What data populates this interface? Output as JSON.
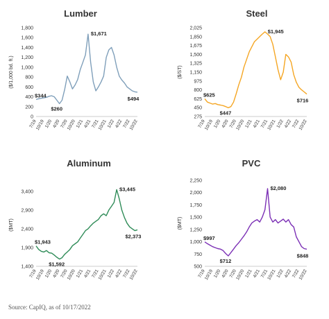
{
  "source_note": "Source: CapIQ, as of 10/17/2022",
  "chart_data": [
    {
      "type": "line",
      "title": "Lumber",
      "ylabel": "($/1,000 bd. ft.)",
      "ylim": [
        0,
        1800
      ],
      "yticks": [
        0,
        200,
        400,
        600,
        800,
        1000,
        1200,
        1400,
        1600,
        1800
      ],
      "ytick_labels": [
        "0",
        "200",
        "400",
        "600",
        "800",
        "1,000",
        "1,200",
        "1,400",
        "1,600",
        "1,800"
      ],
      "xticks": [
        "7/19",
        "10/19",
        "1/20",
        "4/20",
        "7/20",
        "10/20",
        "1/21",
        "4/21",
        "7/21",
        "10/21",
        "1/22",
        "4/22",
        "7/22",
        "10/22"
      ],
      "color": "#7f9fba",
      "series": [
        {
          "x": [
            0,
            1,
            2,
            3,
            4,
            5,
            6,
            7,
            8,
            9,
            10,
            11,
            12,
            13,
            14,
            15,
            16,
            17,
            18,
            19,
            20,
            21,
            22,
            23,
            24,
            25,
            26,
            27,
            28,
            29,
            30,
            31,
            32,
            33,
            34,
            35,
            36,
            37,
            38,
            39
          ],
          "values": [
            344,
            360,
            370,
            380,
            390,
            410,
            420,
            400,
            330,
            260,
            330,
            550,
            820,
            700,
            560,
            640,
            750,
            950,
            1100,
            1250,
            1671,
            1100,
            700,
            520,
            600,
            700,
            820,
            1200,
            1350,
            1400,
            1250,
            1000,
            820,
            740,
            680,
            600,
            560,
            520,
            500,
            494
          ]
        }
      ],
      "annotations": [
        {
          "x": 0,
          "value": 344,
          "text": "$344"
        },
        {
          "x": 9,
          "value": 260,
          "text": "$260"
        },
        {
          "x": 20,
          "value": 1671,
          "text": "$1,671"
        },
        {
          "x": 39,
          "value": 494,
          "text": "$494"
        }
      ]
    },
    {
      "type": "line",
      "title": "Steel",
      "ylabel": "($/ST)",
      "ylim": [
        275,
        2025
      ],
      "yticks": [
        275,
        450,
        625,
        800,
        975,
        1150,
        1325,
        1500,
        1675,
        1850,
        2025
      ],
      "ytick_labels": [
        "275",
        "450",
        "625",
        "800",
        "975",
        "1,150",
        "1,325",
        "1,500",
        "1,675",
        "1,850",
        "2,025"
      ],
      "xticks": [
        "7/19",
        "10/19",
        "1/20",
        "4/20",
        "7/20",
        "10/20",
        "1/21",
        "4/21",
        "7/21",
        "10/21",
        "1/22",
        "4/22",
        "7/22",
        "10/22"
      ],
      "color": "#f5a623",
      "series": [
        {
          "x": [
            0,
            1,
            2,
            3,
            4,
            5,
            6,
            7,
            8,
            9,
            10,
            11,
            12,
            13,
            14,
            15,
            16,
            17,
            18,
            19,
            20,
            21,
            22,
            23,
            24,
            25,
            26,
            27,
            28,
            29,
            30,
            31,
            32,
            33,
            34,
            35,
            36,
            37,
            38,
            39
          ],
          "values": [
            625,
            560,
            540,
            520,
            530,
            510,
            500,
            490,
            470,
            447,
            470,
            560,
            720,
            900,
            1050,
            1250,
            1400,
            1550,
            1650,
            1750,
            1800,
            1850,
            1900,
            1945,
            1900,
            1850,
            1700,
            1450,
            1200,
            1000,
            1150,
            1500,
            1450,
            1350,
            1100,
            950,
            850,
            800,
            760,
            716
          ]
        }
      ],
      "annotations": [
        {
          "x": 0,
          "value": 625,
          "text": "$625"
        },
        {
          "x": 9,
          "value": 447,
          "text": "$447"
        },
        {
          "x": 23,
          "value": 1945,
          "text": "$1,945"
        },
        {
          "x": 39,
          "value": 716,
          "text": "$716"
        }
      ]
    },
    {
      "type": "line",
      "title": "Aluminum",
      "ylabel": "($MT)",
      "ylim": [
        1400,
        3600
      ],
      "yticks": [
        1400,
        1900,
        2400,
        2900,
        3400
      ],
      "ytick_labels": [
        "1,400",
        "1,900",
        "2,400",
        "2,900",
        "3,400"
      ],
      "xticks": [
        "7/19",
        "10/19",
        "1/20",
        "4/20",
        "7/20",
        "10/20",
        "1/21",
        "4/21",
        "7/21",
        "10/21",
        "1/22",
        "4/22",
        "7/22",
        "10/22"
      ],
      "color": "#2e8b57",
      "series": [
        {
          "x": [
            0,
            1,
            2,
            3,
            4,
            5,
            6,
            7,
            8,
            9,
            10,
            11,
            12,
            13,
            14,
            15,
            16,
            17,
            18,
            19,
            20,
            21,
            22,
            23,
            24,
            25,
            26,
            27,
            28,
            29,
            30,
            31,
            32,
            33,
            34,
            35,
            36,
            37,
            38,
            39
          ],
          "values": [
            1943,
            1850,
            1800,
            1780,
            1820,
            1760,
            1750,
            1700,
            1640,
            1592,
            1630,
            1720,
            1780,
            1850,
            1950,
            2000,
            2050,
            2150,
            2250,
            2350,
            2400,
            2480,
            2550,
            2600,
            2650,
            2750,
            2800,
            2750,
            2900,
            3000,
            3100,
            3445,
            3200,
            2900,
            2700,
            2550,
            2450,
            2400,
            2350,
            2373
          ]
        }
      ],
      "annotations": [
        {
          "x": 0,
          "value": 1943,
          "text": "$1,943"
        },
        {
          "x": 9,
          "value": 1592,
          "text": "$1,592"
        },
        {
          "x": 31,
          "value": 3445,
          "text": "$3,445"
        },
        {
          "x": 39,
          "value": 2373,
          "text": "$2,373"
        }
      ]
    },
    {
      "type": "line",
      "title": "PVC",
      "ylabel": "($MT)",
      "ylim": [
        500,
        2250
      ],
      "yticks": [
        500,
        750,
        1000,
        1250,
        1500,
        1750,
        2000,
        2250
      ],
      "ytick_labels": [
        "500",
        "750",
        "1,000",
        "1,250",
        "1,500",
        "1,750",
        "2,000",
        "2,250"
      ],
      "xticks": [
        "7/19",
        "10/19",
        "1/20",
        "4/20",
        "7/20",
        "10/20",
        "1/21",
        "4/21",
        "7/21",
        "10/21",
        "1/22",
        "4/22",
        "7/22",
        "10/22"
      ],
      "color": "#7b2fb5",
      "series": [
        {
          "x": [
            0,
            1,
            2,
            3,
            4,
            5,
            6,
            7,
            8,
            9,
            10,
            11,
            12,
            13,
            14,
            15,
            16,
            17,
            18,
            19,
            20,
            21,
            22,
            23,
            24,
            25,
            26,
            27,
            28,
            29,
            30,
            31,
            32,
            33,
            34,
            35,
            36,
            37,
            38,
            39
          ],
          "values": [
            997,
            960,
            930,
            900,
            880,
            860,
            850,
            820,
            760,
            712,
            780,
            850,
            920,
            980,
            1050,
            1120,
            1200,
            1300,
            1380,
            1420,
            1450,
            1400,
            1500,
            1650,
            2080,
            1500,
            1400,
            1450,
            1380,
            1420,
            1460,
            1400,
            1450,
            1350,
            1300,
            1100,
            1000,
            900,
            860,
            848
          ]
        }
      ],
      "annotations": [
        {
          "x": 0,
          "value": 997,
          "text": "$997"
        },
        {
          "x": 9,
          "value": 712,
          "text": "$712"
        },
        {
          "x": 24,
          "value": 2080,
          "text": "$2,080"
        },
        {
          "x": 39,
          "value": 848,
          "text": "$848"
        }
      ]
    }
  ]
}
